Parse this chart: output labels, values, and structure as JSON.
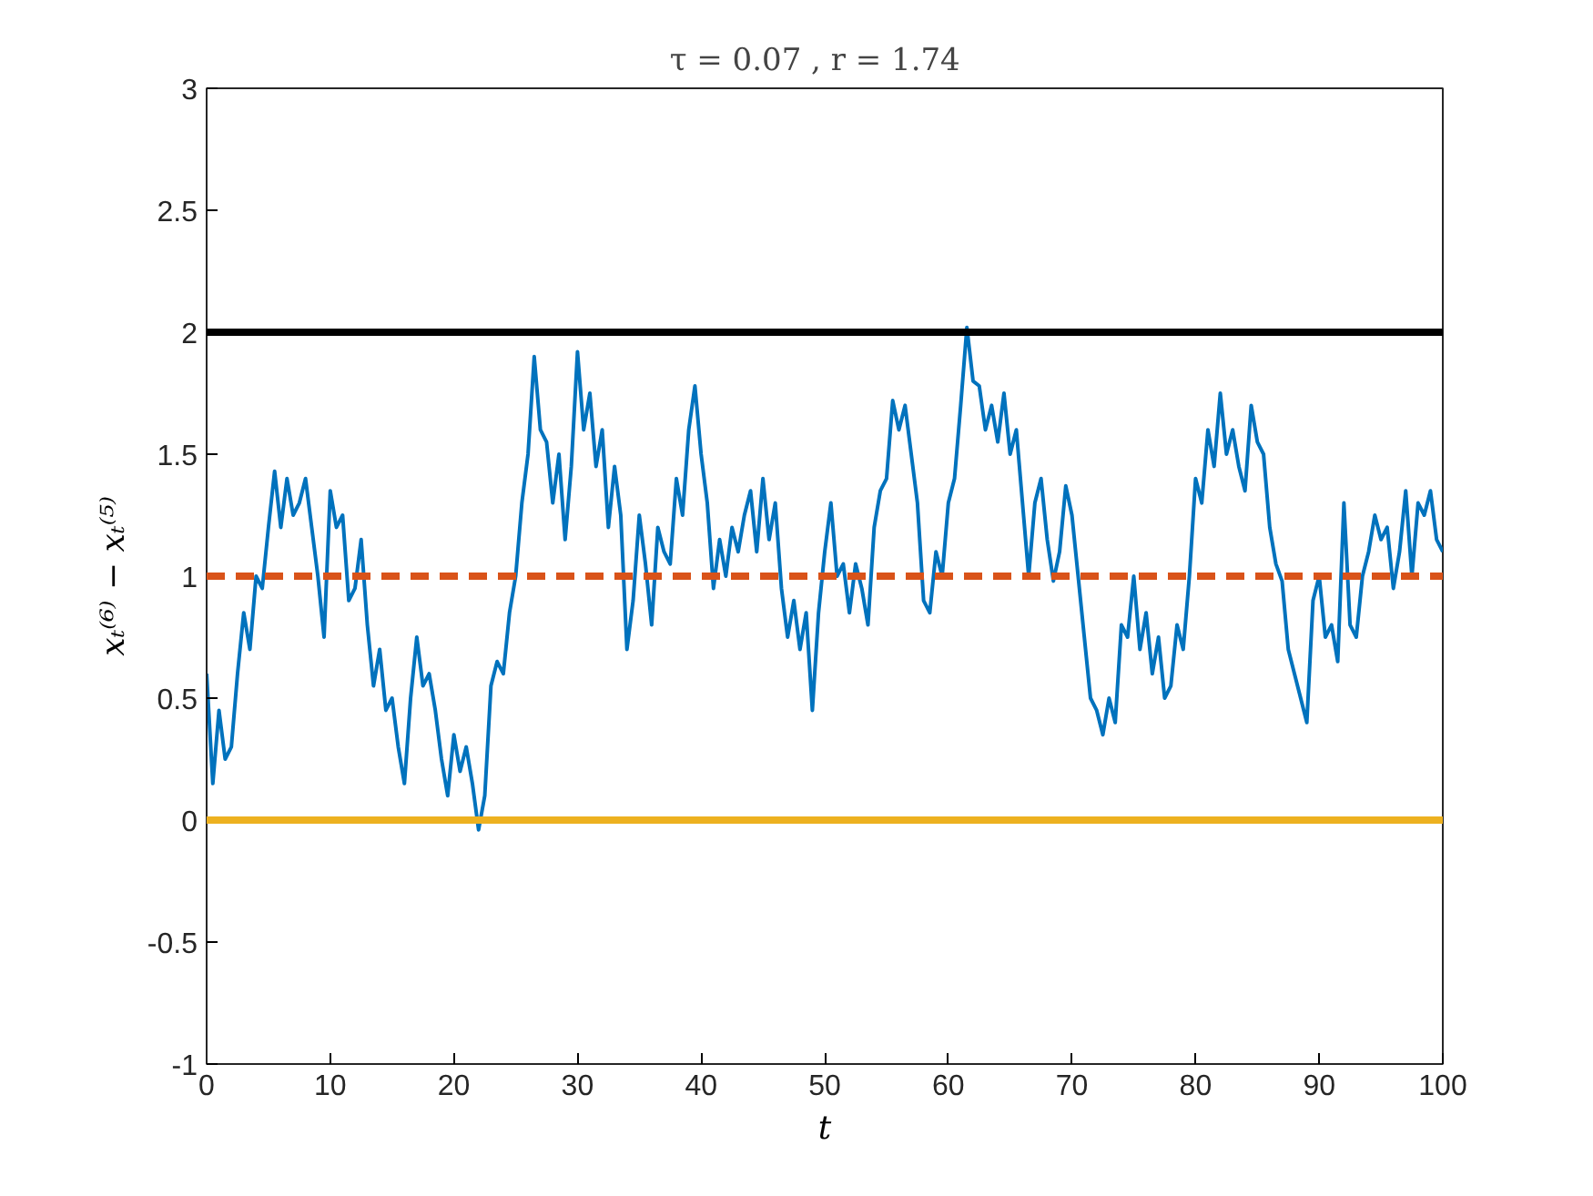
{
  "chart_data": {
    "type": "line",
    "title": "τ = 0.07  ,  r = 1.74",
    "xlabel": "t",
    "ylabel": "xₜ⁽⁶⁾ − xₜ⁽⁵⁾",
    "x": [
      0,
      0.5,
      1,
      1.5,
      2,
      2.5,
      3,
      3.5,
      4,
      4.5,
      5,
      5.5,
      6,
      6.5,
      7,
      7.5,
      8,
      8.5,
      9,
      9.5,
      10,
      10.5,
      11,
      11.5,
      12,
      12.5,
      13,
      13.5,
      14,
      14.5,
      15,
      15.5,
      16,
      16.5,
      17,
      17.5,
      18,
      18.5,
      19,
      19.5,
      20,
      20.5,
      21,
      21.5,
      22,
      22.5,
      23,
      23.5,
      24,
      24.5,
      25,
      25.5,
      26,
      26.5,
      27,
      27.5,
      28,
      28.5,
      29,
      29.5,
      30,
      30.5,
      31,
      31.5,
      32,
      32.5,
      33,
      33.5,
      34,
      34.5,
      35,
      35.5,
      36,
      36.5,
      37,
      37.5,
      38,
      38.5,
      39,
      39.5,
      40,
      40.5,
      41,
      41.5,
      42,
      42.5,
      43,
      43.5,
      44,
      44.5,
      45,
      45.5,
      46,
      46.5,
      47,
      47.5,
      48,
      48.5,
      49,
      49.5,
      50,
      50.5,
      51,
      51.5,
      52,
      52.5,
      53,
      53.5,
      54,
      54.5,
      55,
      55.5,
      56,
      56.5,
      57,
      57.5,
      58,
      58.5,
      59,
      59.5,
      60,
      60.5,
      61,
      61.5,
      62,
      62.5,
      63,
      63.5,
      64,
      64.5,
      65,
      65.5,
      66,
      66.5,
      67,
      67.5,
      68,
      68.5,
      69,
      69.5,
      70,
      70.5,
      71,
      71.5,
      72,
      72.5,
      73,
      73.5,
      74,
      74.5,
      75,
      75.5,
      76,
      76.5,
      77,
      77.5,
      78,
      78.5,
      79,
      79.5,
      80,
      80.5,
      81,
      81.5,
      82,
      82.5,
      83,
      83.5,
      84,
      84.5,
      85,
      85.5,
      86,
      86.5,
      87,
      87.5,
      88,
      88.5,
      89,
      89.5,
      90,
      90.5,
      91,
      91.5,
      92,
      92.5,
      93,
      93.5,
      94,
      94.5,
      95,
      95.5,
      96,
      96.5,
      97,
      97.5,
      98,
      98.5,
      99,
      99.5,
      100
    ],
    "series": [
      {
        "color": "#0072bd",
        "values": [
          0.6,
          0.15,
          0.45,
          0.25,
          0.3,
          0.6,
          0.85,
          0.7,
          1.0,
          0.95,
          1.2,
          1.43,
          1.2,
          1.4,
          1.25,
          1.3,
          1.4,
          1.2,
          1.0,
          0.75,
          1.35,
          1.2,
          1.25,
          0.9,
          0.95,
          1.15,
          0.8,
          0.55,
          0.7,
          0.45,
          0.5,
          0.3,
          0.15,
          0.5,
          0.75,
          0.55,
          0.6,
          0.45,
          0.25,
          0.1,
          0.35,
          0.2,
          0.3,
          0.15,
          -0.04,
          0.1,
          0.55,
          0.65,
          0.6,
          0.85,
          1.0,
          1.3,
          1.5,
          1.9,
          1.6,
          1.55,
          1.3,
          1.5,
          1.15,
          1.45,
          1.92,
          1.6,
          1.75,
          1.45,
          1.6,
          1.2,
          1.45,
          1.25,
          0.7,
          0.9,
          1.25,
          1.05,
          0.8,
          1.2,
          1.1,
          1.05,
          1.4,
          1.25,
          1.6,
          1.78,
          1.5,
          1.3,
          0.95,
          1.15,
          1.0,
          1.2,
          1.1,
          1.25,
          1.35,
          1.1,
          1.4,
          1.15,
          1.3,
          0.95,
          0.75,
          0.9,
          0.7,
          0.85,
          0.45,
          0.85,
          1.1,
          1.3,
          1.0,
          1.05,
          0.85,
          1.05,
          0.95,
          0.8,
          1.2,
          1.35,
          1.4,
          1.72,
          1.6,
          1.7,
          1.5,
          1.3,
          0.9,
          0.85,
          1.1,
          1.0,
          1.3,
          1.4,
          1.7,
          2.02,
          1.8,
          1.78,
          1.6,
          1.7,
          1.55,
          1.75,
          1.5,
          1.6,
          1.3,
          1.0,
          1.3,
          1.4,
          1.15,
          0.98,
          1.1,
          1.37,
          1.25,
          1.0,
          0.75,
          0.5,
          0.45,
          0.35,
          0.5,
          0.4,
          0.8,
          0.75,
          1.0,
          0.7,
          0.85,
          0.6,
          0.75,
          0.5,
          0.55,
          0.8,
          0.7,
          1.0,
          1.4,
          1.3,
          1.6,
          1.45,
          1.75,
          1.5,
          1.6,
          1.45,
          1.35,
          1.7,
          1.55,
          1.5,
          1.2,
          1.05,
          0.98,
          0.7,
          0.6,
          0.5,
          0.4,
          0.9,
          1.0,
          0.75,
          0.8,
          0.65,
          1.3,
          0.8,
          0.75,
          1.0,
          1.1,
          1.25,
          1.15,
          1.2,
          0.95,
          1.1,
          1.35,
          1.0,
          1.3,
          1.25,
          1.35,
          1.15,
          1.1
        ]
      }
    ],
    "ref_lines": [
      {
        "axis": "y",
        "value": 2,
        "color": "#000000",
        "line_style": "solid"
      },
      {
        "axis": "y",
        "value": 1,
        "color": "#d95319",
        "line_style": "dashed"
      },
      {
        "axis": "y",
        "value": 0,
        "color": "#edb120",
        "line_style": "solid"
      }
    ],
    "xlim": [
      0,
      100
    ],
    "ylim": [
      -1,
      3
    ],
    "xticks": [
      0,
      10,
      20,
      30,
      40,
      50,
      60,
      70,
      80,
      90,
      100
    ],
    "yticks": [
      -1,
      -0.5,
      0,
      0.5,
      1,
      1.5,
      2,
      2.5,
      3
    ],
    "grid": false,
    "marker": "none",
    "line_style": "solid"
  }
}
